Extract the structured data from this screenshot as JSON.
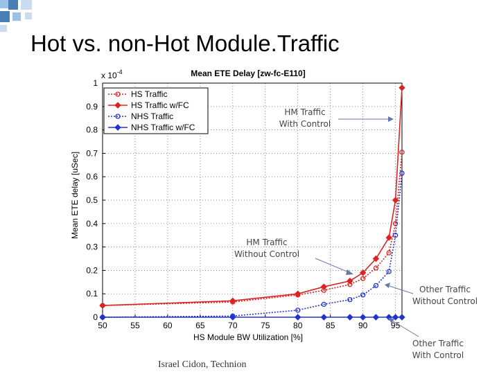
{
  "slide": {
    "title": "Hot vs. non-Hot Module.Traffic",
    "footer": "Israel Cidon, Technion",
    "accent_colors": [
      "#4a7fb5",
      "#9cc2e8",
      "#c9dcf0"
    ]
  },
  "chart_data": {
    "type": "line",
    "title": "Mean ETE Delay [zw-fc-E110]",
    "xlabel": "HS Module BW Utilization [%]",
    "ylabel": "Mean ETE delay [uSec]",
    "y_exponent_label": "x 10",
    "y_exponent_power": "-4",
    "xlim": [
      50,
      96
    ],
    "ylim": [
      0,
      1
    ],
    "x_ticks": [
      50,
      55,
      60,
      65,
      70,
      75,
      80,
      85,
      90,
      95
    ],
    "y_ticks": [
      0,
      0.1,
      0.2,
      0.3,
      0.4,
      0.5,
      0.6,
      0.7,
      0.8,
      0.9,
      1
    ],
    "y_tick_labels": [
      "0",
      "0.1",
      "0.2",
      "0.3",
      "0.4",
      "0.5",
      "0.6",
      "0.7",
      "0.8",
      "0.9",
      "1"
    ],
    "grid": true,
    "legend_position": "top-left",
    "series": [
      {
        "name": "HS Traffic",
        "color": "#dd2222",
        "style": "dotted",
        "marker": "circle",
        "x": [
          50,
          70,
          80,
          84,
          88,
          90,
          92,
          94,
          95,
          96
        ],
        "y": [
          0.05,
          0.065,
          0.095,
          0.115,
          0.14,
          0.165,
          0.21,
          0.275,
          0.4,
          0.705
        ]
      },
      {
        "name": "HS Traffic w/FC",
        "color": "#dd2222",
        "style": "solid",
        "marker": "diamond",
        "x": [
          50,
          70,
          80,
          84,
          88,
          90,
          92,
          94,
          95,
          96
        ],
        "y": [
          0.05,
          0.07,
          0.1,
          0.13,
          0.155,
          0.19,
          0.25,
          0.34,
          0.5,
          0.98
        ]
      },
      {
        "name": "NHS Traffic",
        "color": "#2233cc",
        "style": "dotted",
        "marker": "circle",
        "x": [
          50,
          70,
          80,
          84,
          88,
          90,
          92,
          94,
          95,
          96
        ],
        "y": [
          0.0,
          0.005,
          0.03,
          0.055,
          0.075,
          0.095,
          0.135,
          0.195,
          0.35,
          0.615
        ]
      },
      {
        "name": "NHS Traffic w/FC",
        "color": "#2233cc",
        "style": "solid",
        "marker": "diamond",
        "x": [
          50,
          70,
          80,
          84,
          88,
          90,
          92,
          94,
          95,
          96
        ],
        "y": [
          0,
          0,
          0,
          0,
          0,
          0,
          0,
          0,
          0,
          0
        ]
      }
    ],
    "annotations": [
      {
        "lines": [
          "HM Traffic",
          "With Control"
        ]
      },
      {
        "lines": [
          "HM Traffic",
          "Without Control"
        ]
      },
      {
        "lines": [
          "Other Traffic",
          "Without Control"
        ]
      },
      {
        "lines": [
          "Other Traffic",
          "With Control"
        ]
      }
    ]
  }
}
